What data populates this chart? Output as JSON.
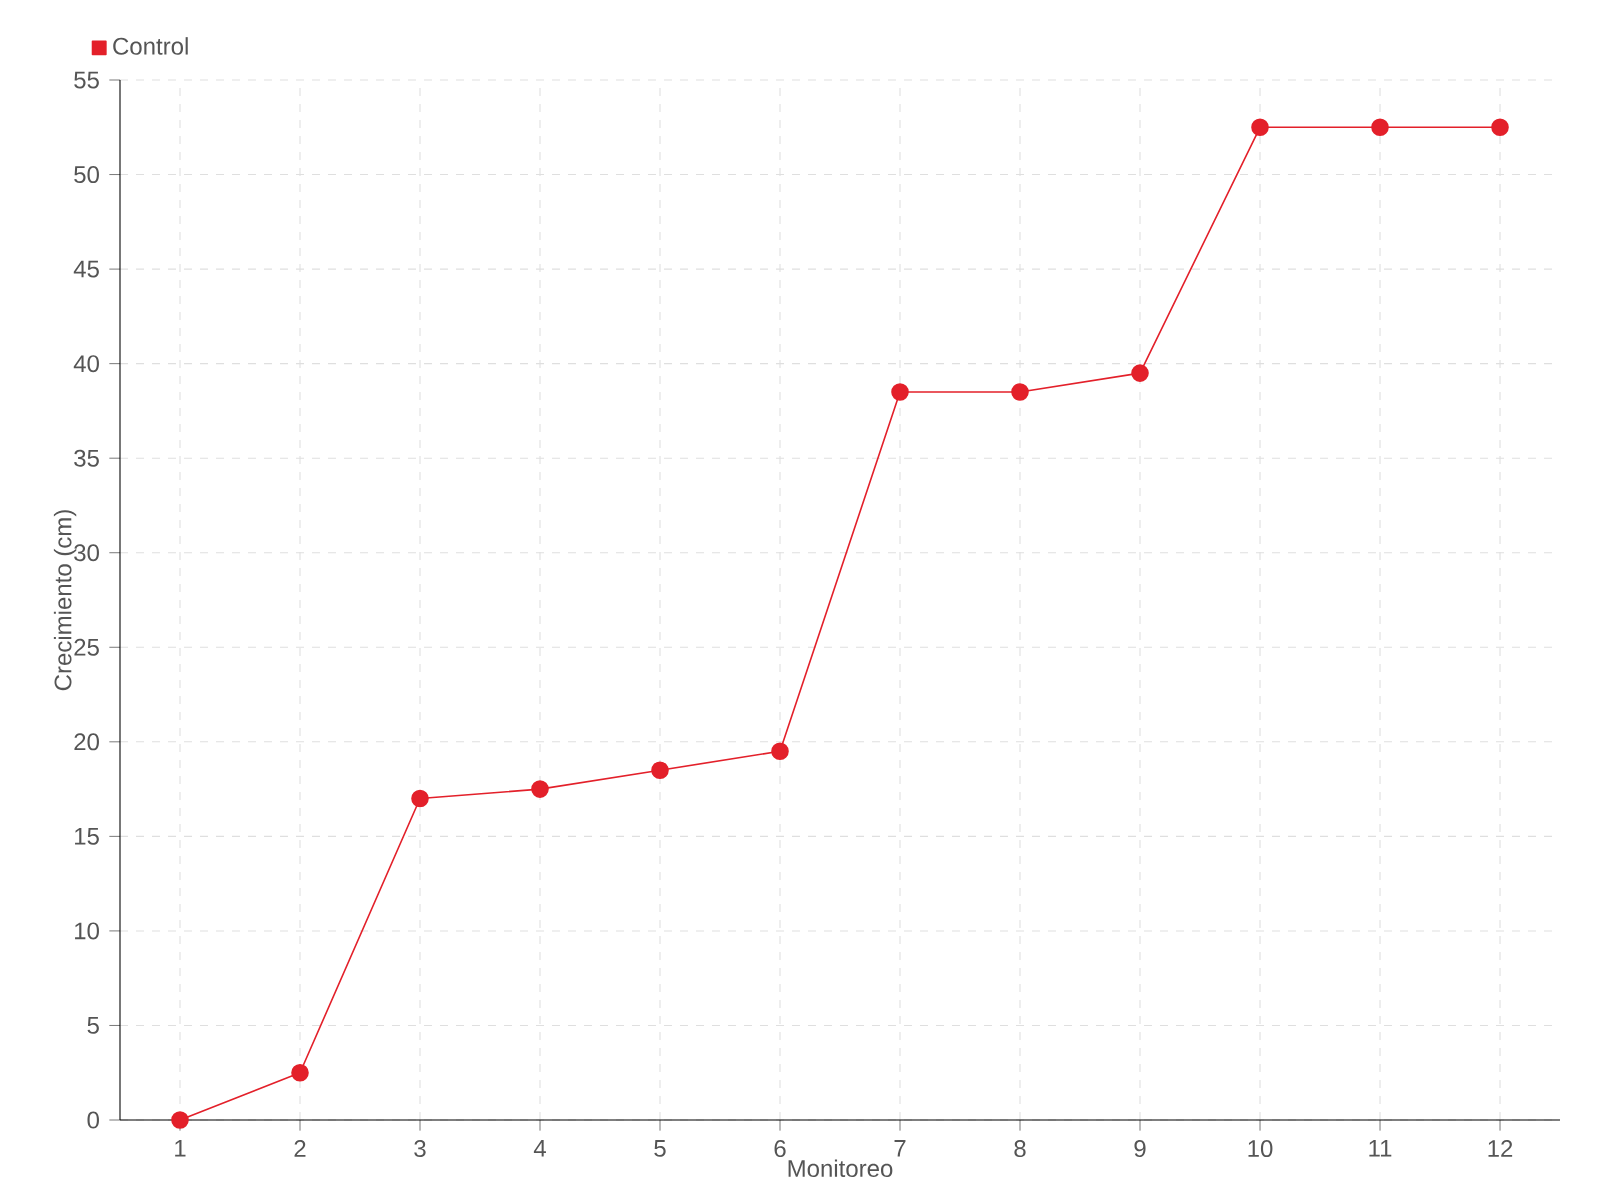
{
  "chart_data": {
    "type": "line",
    "xlabel": "Monitoreo",
    "ylabel": "Crecimiento (cm)",
    "categories": [
      "1",
      "2",
      "3",
      "4",
      "5",
      "6",
      "7",
      "8",
      "9",
      "10",
      "11",
      "12"
    ],
    "series": [
      {
        "name": "Control",
        "color": "#e3202a",
        "values": [
          0,
          2.5,
          17,
          17.5,
          18.5,
          19.5,
          38.5,
          38.5,
          39.5,
          52.5,
          52.5,
          52.5
        ]
      }
    ],
    "ylim": [
      0,
      55
    ],
    "yticks": [
      0,
      5,
      10,
      15,
      20,
      25,
      30,
      35,
      40,
      45,
      50,
      55
    ],
    "grid": true,
    "legend": "top left",
    "marker": "circle",
    "line_style": "solid"
  }
}
